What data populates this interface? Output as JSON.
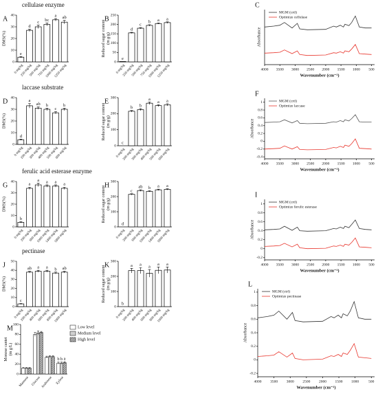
{
  "chart_data": [
    {
      "type": "bar",
      "panel": "A",
      "title": "cellulase enzyme",
      "ylabel": [
        "DMS(%)"
      ],
      "categories": [
        "0 mg/kg",
        "250 mg/kg",
        "500 mg/kg",
        "750 mg/kg",
        "1000 mg/kg",
        "1250 mg/kg"
      ],
      "values": [
        4,
        27,
        30,
        32,
        36,
        34
      ],
      "errors": [
        0.5,
        1,
        1.5,
        1.2,
        1,
        1.5
      ],
      "letters": [
        "e",
        "d",
        "c",
        "bc",
        "a",
        "ab"
      ],
      "ylim": [
        0,
        40
      ],
      "yticks": [
        0,
        10,
        20,
        30,
        40
      ],
      "color": "#ffffff"
    },
    {
      "type": "bar",
      "panel": "B",
      "ylabel": [
        "Reduced sugar content",
        "(m g/g)"
      ],
      "categories": [
        "0 mg/kg",
        "250 mg/kg",
        "500 mg/kg",
        "750 mg/kg",
        "1000 mg/kg",
        "1250 mg/kg"
      ],
      "values": [
        2,
        155,
        180,
        195,
        205,
        210
      ],
      "errors": [
        0,
        3,
        3,
        4,
        3,
        4
      ],
      "letters": [
        "e",
        "d",
        "c",
        "b",
        "a",
        "a"
      ],
      "ylim": [
        0,
        250
      ],
      "yticks": [
        0,
        50,
        100,
        150,
        200,
        250
      ],
      "color": "#ffffff"
    },
    {
      "type": "line",
      "panel": "C",
      "xlabel": "Wavenumber (cm⁻¹)",
      "ylabel": [
        "Absorbance"
      ],
      "x": [
        4000,
        3700,
        3500,
        3350,
        3100,
        2930,
        2850,
        2600,
        2000,
        1740,
        1650,
        1520,
        1420,
        1370,
        1240,
        1150,
        1030,
        900,
        700,
        500
      ],
      "series": [
        {
          "name": "MGM (crtl)",
          "color": "#333333",
          "values": [
            0.62,
            0.64,
            0.66,
            0.72,
            0.6,
            0.7,
            0.58,
            0.56,
            0.57,
            0.64,
            0.62,
            0.66,
            0.62,
            0.68,
            0.65,
            0.72,
            0.86,
            0.62,
            0.6,
            0.6
          ]
        },
        {
          "name": "Optimize cellulase",
          "color": "#e8332a",
          "values": [
            0.05,
            0.06,
            0.07,
            0.12,
            0.04,
            0.1,
            0.02,
            0.0,
            0.01,
            0.06,
            0.05,
            0.08,
            0.05,
            0.1,
            0.08,
            0.14,
            0.24,
            0.04,
            0.03,
            0.02
          ]
        }
      ],
      "xlim": [
        4000,
        400
      ],
      "ylim": [
        -0.2,
        1.0
      ],
      "xticks": [
        4000,
        3500,
        3000,
        2500,
        2000,
        1500,
        1000,
        500
      ]
    },
    {
      "type": "bar",
      "panel": "D",
      "title": "laccase substrate",
      "ylabel": [
        "DMS(%)"
      ],
      "categories": [
        "0 mg/kg",
        "200 mg/kg",
        "300 mg/kg",
        "400 mg/kg",
        "500 mg/kg",
        "600 mg/kg"
      ],
      "values": [
        4,
        33,
        31,
        30,
        27,
        30
      ],
      "errors": [
        0.5,
        2,
        1,
        1,
        1,
        1
      ],
      "letters": [
        "d",
        "a",
        "ab",
        "b",
        "c",
        "b"
      ],
      "ylim": [
        0,
        40
      ],
      "yticks": [
        0,
        10,
        20,
        30,
        40
      ],
      "color": "#ffffff"
    },
    {
      "type": "bar",
      "panel": "E",
      "ylabel": [
        "Reduced sugar content",
        "(m g/g)"
      ],
      "categories": [
        "0 mg/kg",
        "200 mg/kg",
        "300 mg/kg",
        "400 mg/kg",
        "500 mg/kg",
        "600 mg/kg"
      ],
      "values": [
        0,
        215,
        225,
        265,
        250,
        255
      ],
      "errors": [
        0,
        5,
        6,
        8,
        6,
        7
      ],
      "letters": [
        "c",
        "b",
        "b",
        "a",
        "a",
        "a"
      ],
      "ylim": [
        0,
        300
      ],
      "yticks": [
        0,
        100,
        200,
        300
      ],
      "color": "#ffffff"
    },
    {
      "type": "line",
      "panel": "F",
      "xlabel": "Wavenumber (cm⁻¹)",
      "ylabel": [
        "Absorbance"
      ],
      "x": [
        4000,
        3700,
        3500,
        3350,
        3100,
        2930,
        2850,
        2600,
        2000,
        1740,
        1650,
        1520,
        1420,
        1370,
        1240,
        1150,
        1030,
        900,
        700,
        500
      ],
      "series": [
        {
          "name": "MGM (crtl)",
          "color": "#555555",
          "values": [
            0.48,
            0.49,
            0.5,
            0.55,
            0.47,
            0.53,
            0.46,
            0.45,
            0.46,
            0.5,
            0.49,
            0.53,
            0.5,
            0.55,
            0.52,
            0.58,
            0.68,
            0.5,
            0.49,
            0.49
          ]
        },
        {
          "name": "Optimize laccase",
          "color": "#e8332a",
          "values": [
            -0.2,
            -0.19,
            -0.18,
            -0.12,
            -0.2,
            -0.14,
            -0.21,
            -0.22,
            -0.21,
            -0.16,
            -0.17,
            -0.13,
            -0.16,
            -0.1,
            -0.13,
            -0.06,
            0.06,
            -0.18,
            -0.19,
            -0.2
          ]
        }
      ],
      "xlim": [
        4000,
        400
      ],
      "ylim": [
        -0.45,
        1.1
      ],
      "xticks": [
        4000,
        3500,
        3000,
        2500,
        2000,
        1500,
        1000,
        500
      ],
      "yticks": [
        -0.4,
        -0.2,
        0.0,
        0.2,
        0.4,
        0.6,
        0.8,
        1.0
      ]
    },
    {
      "type": "bar",
      "panel": "G",
      "title": "ferulic acid esterase enzyme",
      "ylabel": [
        "DMS(%)"
      ],
      "categories": [
        "0 mg/kg",
        "200 mg/kg",
        "600 mg/kg",
        "1000 mg/kg",
        "1400 mg/kg",
        "1800 mg/kg"
      ],
      "values": [
        4,
        34,
        37,
        36,
        36,
        34
      ],
      "errors": [
        0.5,
        1,
        1.5,
        1,
        1,
        1
      ],
      "letters": [
        "b",
        "a",
        "a",
        "a",
        "a",
        "a"
      ],
      "ylim": [
        0,
        40
      ],
      "yticks": [
        0,
        10,
        20,
        30,
        40
      ],
      "color": "#ffffff"
    },
    {
      "type": "bar",
      "panel": "H",
      "ylabel": [
        "Reduced sugar content",
        "(m g/g)"
      ],
      "categories": [
        "0 mg/kg",
        "200 mg/kg",
        "600 mg/kg",
        "1000 mg/kg",
        "1400 mg/kg",
        "1800 mg/kg"
      ],
      "values": [
        0,
        215,
        240,
        235,
        245,
        248
      ],
      "errors": [
        0,
        4,
        5,
        4,
        4,
        4
      ],
      "letters": [
        "d",
        "c",
        "ab",
        "b",
        "a",
        "a"
      ],
      "ylim": [
        0,
        300
      ],
      "yticks": [
        0,
        100,
        200,
        300
      ],
      "color": "#ffffff"
    },
    {
      "type": "line",
      "panel": "I",
      "xlabel": "Wavenumber (cm⁻¹)",
      "ylabel": [
        "Absorbance"
      ],
      "x": [
        4000,
        3700,
        3500,
        3350,
        3100,
        2930,
        2850,
        2600,
        2000,
        1740,
        1650,
        1520,
        1420,
        1370,
        1240,
        1150,
        1030,
        900,
        700,
        500
      ],
      "series": [
        {
          "name": "MGM (crtl)",
          "color": "#333333",
          "values": [
            0.42,
            0.43,
            0.44,
            0.5,
            0.41,
            0.48,
            0.4,
            0.39,
            0.4,
            0.45,
            0.44,
            0.48,
            0.45,
            0.5,
            0.47,
            0.54,
            0.64,
            0.45,
            0.43,
            0.42
          ]
        },
        {
          "name": "Optimize ferulic esterase",
          "color": "#e8332a",
          "values": [
            0.05,
            0.06,
            0.07,
            0.12,
            0.04,
            0.1,
            0.02,
            0.0,
            0.01,
            0.06,
            0.05,
            0.08,
            0.05,
            0.1,
            0.08,
            0.14,
            0.24,
            0.04,
            0.03,
            0.02
          ]
        }
      ],
      "xlim": [
        4000,
        400
      ],
      "ylim": [
        -0.25,
        1.1
      ],
      "xticks": [
        4000,
        3500,
        3000,
        2500,
        2000,
        1500,
        1000,
        500
      ],
      "yticks": [
        -0.2,
        0.0,
        0.2,
        0.4,
        0.6,
        0.8,
        1.0
      ]
    },
    {
      "type": "bar",
      "panel": "J",
      "title": "pectinase",
      "ylabel": [
        "DMS(%)"
      ],
      "categories": [
        "0 mg/kg",
        "200 mg/kg",
        "400 mg/kg",
        "600 mg/kg",
        "800 mg/kg",
        "1000 mg/kg"
      ],
      "values": [
        3,
        38,
        39,
        39,
        37,
        38
      ],
      "errors": [
        0.5,
        1,
        1,
        1,
        1,
        1
      ],
      "letters": [
        "c",
        "ab",
        "a",
        "a",
        "b",
        "ab"
      ],
      "ylim": [
        0,
        50
      ],
      "yticks": [
        0,
        10,
        20,
        30,
        40,
        50
      ],
      "color": "#ffffff"
    },
    {
      "type": "bar",
      "panel": "K",
      "ylabel": [
        "Reduced sugar content",
        "(m g/g)"
      ],
      "categories": [
        "0 mg/kg",
        "200 mg/kg",
        "400 mg/kg",
        "600 mg/kg",
        "800 mg/kg",
        "1000 mg/kg"
      ],
      "values": [
        0,
        238,
        238,
        220,
        240,
        242
      ],
      "errors": [
        0,
        15,
        20,
        25,
        22,
        20
      ],
      "letters": [
        "b",
        "a",
        "a",
        "a",
        "a",
        "a"
      ],
      "ylim": [
        0,
        300
      ],
      "yticks": [
        0,
        100,
        200,
        300
      ],
      "color": "#ffffff"
    },
    {
      "type": "line",
      "panel": "L",
      "xlabel": "Wavenumber (cm⁻¹)",
      "ylabel": [
        "Absorbance"
      ],
      "x": [
        4000,
        3700,
        3500,
        3350,
        3100,
        2930,
        2850,
        2600,
        2000,
        1740,
        1650,
        1520,
        1420,
        1370,
        1240,
        1150,
        1030,
        900,
        700,
        500
      ],
      "series": [
        {
          "name": "MGM (ctrl)",
          "color": "#333333",
          "values": [
            0.62,
            0.64,
            0.66,
            0.72,
            0.6,
            0.7,
            0.58,
            0.56,
            0.57,
            0.64,
            0.62,
            0.66,
            0.62,
            0.68,
            0.65,
            0.72,
            0.86,
            0.62,
            0.6,
            0.6
          ]
        },
        {
          "name": "Optimize pectinase",
          "color": "#e8332a",
          "values": [
            0.05,
            0.06,
            0.07,
            0.12,
            0.04,
            0.1,
            0.02,
            0.0,
            0.01,
            0.06,
            0.05,
            0.08,
            0.05,
            0.1,
            0.08,
            0.14,
            0.24,
            0.04,
            0.03,
            0.02
          ]
        }
      ],
      "xlim": [
        4000,
        400
      ],
      "ylim": [
        -0.25,
        1.05
      ],
      "xticks": [
        4000,
        3500,
        3000,
        2500,
        2000,
        1500,
        1000,
        500
      ],
      "yticks": [
        -0.2,
        0.0,
        0.2,
        0.4,
        0.6,
        0.8,
        1.0
      ]
    },
    {
      "type": "grouped-bar",
      "panel": "M",
      "ylabel": [
        "Monose cantet",
        "(m g/L)"
      ],
      "categories": [
        "Mannose",
        "Glucose",
        "Arabinose",
        "Xylose"
      ],
      "series": [
        {
          "name": "Low level",
          "color": "#ffffff",
          "values": [
            12,
            80,
            34,
            22
          ],
          "errors": [
            1,
            4,
            2,
            2
          ],
          "letters": [
            null,
            null,
            null,
            "b"
          ]
        },
        {
          "name": "Medium level",
          "color": "#d0d0d0",
          "values": [
            12,
            83,
            35,
            22
          ],
          "errors": [
            1,
            4,
            2,
            2
          ],
          "letters": [
            null,
            null,
            null,
            "b"
          ]
        },
        {
          "name": "High level",
          "color": "#9a9a9a",
          "values": [
            12,
            84,
            35,
            23
          ],
          "errors": [
            1,
            2,
            2,
            2
          ],
          "letters": [
            null,
            null,
            null,
            "a"
          ]
        }
      ],
      "ylim": [
        0,
        100
      ],
      "yticks": [
        0,
        20,
        40,
        60,
        80,
        100
      ]
    }
  ]
}
